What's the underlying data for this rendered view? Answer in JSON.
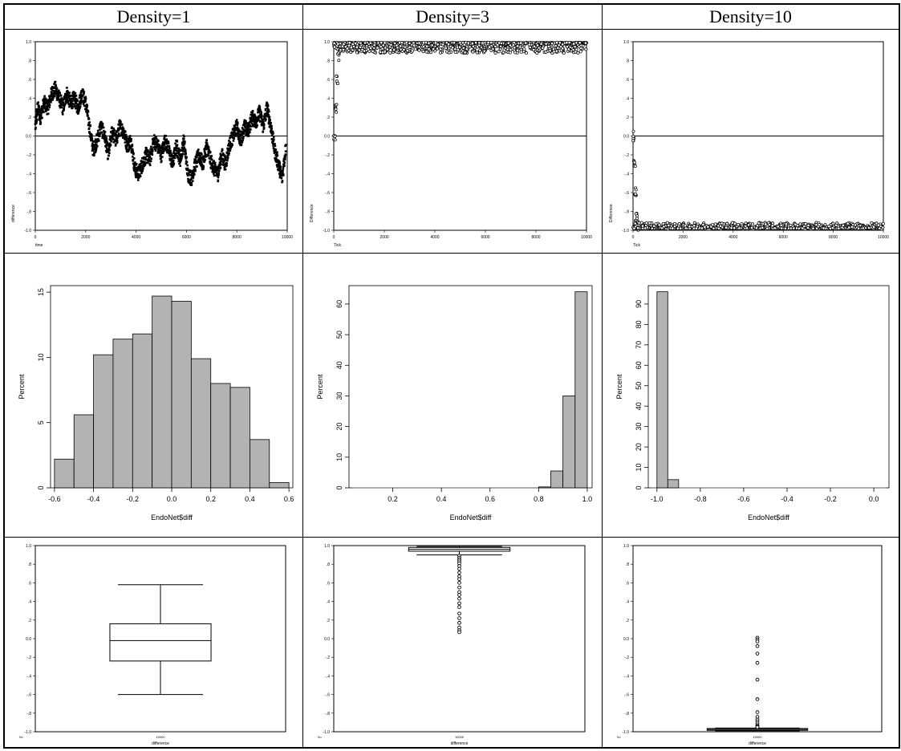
{
  "columns": [
    "Density=1",
    "Density=3",
    "Density=10"
  ],
  "chart_data": [
    {
      "panel": "density1-timeseries",
      "type": "scatter",
      "xlabel": "time",
      "ylabel": "difference",
      "xlim": [
        0,
        10000
      ],
      "ylim": [
        -1.0,
        1.0
      ],
      "xticks": [
        "0",
        "2000",
        "4000",
        "6000",
        "8000",
        "10000"
      ],
      "yticks": [
        "-1.0",
        "-.8",
        "-.6",
        "-.4",
        "-.2",
        "0.0",
        ".2",
        ".4",
        ".6",
        ".8",
        "1.0"
      ],
      "reference_line": 0,
      "trace_x": [
        0,
        100,
        200,
        350,
        500,
        650,
        800,
        950,
        1100,
        1250,
        1400,
        1550,
        1700,
        1850,
        2000,
        2150,
        2300,
        2450,
        2600,
        2750,
        2900,
        3050,
        3200,
        3350,
        3500,
        3650,
        3800,
        3950,
        4100,
        4250,
        4400,
        4550,
        4700,
        4850,
        5000,
        5150,
        5300,
        5450,
        5600,
        5750,
        5900,
        6050,
        6200,
        6350,
        6500,
        6650,
        6800,
        6950,
        7100,
        7250,
        7400,
        7550,
        7700,
        7850,
        8000,
        8150,
        8300,
        8450,
        8600,
        8750,
        8900,
        9050,
        9200,
        9350,
        9500,
        9650,
        9800,
        9950
      ],
      "trace_y": [
        0.1,
        0.3,
        0.2,
        0.35,
        0.3,
        0.45,
        0.5,
        0.4,
        0.3,
        0.45,
        0.35,
        0.4,
        0.3,
        0.45,
        0.35,
        0.1,
        -0.15,
        -0.05,
        0.1,
        0.0,
        -0.2,
        0.05,
        -0.05,
        0.1,
        0.05,
        -0.1,
        -0.05,
        -0.35,
        -0.4,
        -0.3,
        -0.2,
        -0.25,
        -0.05,
        -0.1,
        -0.2,
        -0.05,
        -0.15,
        -0.3,
        -0.1,
        -0.25,
        -0.05,
        -0.4,
        -0.45,
        -0.3,
        -0.2,
        -0.3,
        -0.1,
        -0.25,
        -0.35,
        -0.4,
        -0.2,
        -0.3,
        -0.1,
        0.0,
        0.1,
        -0.05,
        0.1,
        0.05,
        0.2,
        0.15,
        0.25,
        0.1,
        0.3,
        0.1,
        -0.15,
        -0.3,
        -0.45,
        -0.1
      ]
    },
    {
      "panel": "density3-timeseries",
      "type": "scatter",
      "xlabel": "Tick",
      "ylabel": "Difference",
      "xlim": [
        0,
        10000
      ],
      "ylim": [
        -1.0,
        1.0
      ],
      "xticks": [
        "0",
        "2000",
        "4000",
        "6000",
        "8000",
        "10000"
      ],
      "yticks": [
        "-1.0",
        "-.8",
        "-.6",
        "-.4",
        "-.2",
        "0.0",
        ".2",
        ".4",
        ".6",
        ".8",
        "1.0"
      ],
      "reference_line": 0,
      "band": [
        0.88,
        0.99
      ],
      "initial_rise": [
        [
          0,
          0.0
        ],
        [
          50,
          0.3
        ],
        [
          100,
          0.6
        ],
        [
          150,
          0.85
        ],
        [
          200,
          0.93
        ]
      ]
    },
    {
      "panel": "density10-timeseries",
      "type": "scatter",
      "xlabel": "Tick",
      "ylabel": "Difference",
      "xlim": [
        0,
        10000
      ],
      "ylim": [
        -1.0,
        1.0
      ],
      "xticks": [
        "0",
        "2000",
        "4000",
        "6000",
        "8000",
        "10000"
      ],
      "yticks": [
        "-1.0",
        "-.8",
        "-.6",
        "-.4",
        "-.2",
        "0.0",
        ".2",
        ".4",
        ".6",
        ".8",
        "1.0"
      ],
      "reference_line": 0,
      "band": [
        -0.98,
        -0.92
      ],
      "initial_drop": [
        [
          0,
          0.0
        ],
        [
          30,
          -0.3
        ],
        [
          60,
          -0.6
        ],
        [
          100,
          -0.85
        ],
        [
          150,
          -0.95
        ]
      ]
    },
    {
      "panel": "density1-histogram",
      "type": "bar",
      "xlabel": "EndoNet$diff",
      "ylabel": "Percent",
      "xlim": [
        -0.62,
        0.62
      ],
      "ylim": [
        0,
        15.5
      ],
      "xticks": [
        -0.6,
        -0.4,
        -0.2,
        0.0,
        0.2,
        0.4,
        0.6
      ],
      "xtick_labels": [
        "-0.6",
        "-0.4",
        "-0.2",
        "0.0",
        "0.2",
        "0.4",
        "0.6"
      ],
      "yticks": [
        0,
        5,
        10,
        15
      ],
      "ytick_labels": [
        "0",
        "5",
        "10",
        "15"
      ],
      "bin_edges": [
        -0.6,
        -0.5,
        -0.4,
        -0.3,
        -0.2,
        -0.1,
        0.0,
        0.1,
        0.2,
        0.3,
        0.4,
        0.5,
        0.6
      ],
      "values": [
        2.2,
        5.6,
        10.2,
        11.4,
        11.8,
        14.7,
        14.3,
        9.9,
        8.0,
        7.7,
        3.7,
        0.4
      ]
    },
    {
      "panel": "density3-histogram",
      "type": "bar",
      "xlabel": "EndoNet$diff",
      "ylabel": "Percent",
      "xlim": [
        0.02,
        1.02
      ],
      "ylim": [
        0,
        66
      ],
      "xticks": [
        0.2,
        0.4,
        0.6,
        0.8,
        1.0
      ],
      "xtick_labels": [
        "0.2",
        "0.4",
        "0.6",
        "0.8",
        "1.0"
      ],
      "yticks": [
        0,
        10,
        20,
        30,
        40,
        50,
        60
      ],
      "ytick_labels": [
        "0",
        "10",
        "20",
        "30",
        "40",
        "50",
        "60"
      ],
      "bin_edges": [
        0.8,
        0.85,
        0.9,
        0.95,
        1.0
      ],
      "values": [
        0.3,
        5.5,
        30.0,
        64.0
      ]
    },
    {
      "panel": "density10-histogram",
      "type": "bar",
      "xlabel": "EndoNet$diff",
      "ylabel": "Percent",
      "xlim": [
        -1.04,
        0.07
      ],
      "ylim": [
        0,
        99
      ],
      "xticks": [
        -1.0,
        -0.8,
        -0.6,
        -0.4,
        -0.2,
        0.0
      ],
      "xtick_labels": [
        "-1.0",
        "-0.8",
        "-0.6",
        "-0.4",
        "-0.2",
        "0.0"
      ],
      "yticks": [
        0,
        10,
        20,
        30,
        40,
        50,
        60,
        70,
        80,
        90
      ],
      "ytick_labels": [
        "0",
        "10",
        "20",
        "30",
        "40",
        "50",
        "60",
        "70",
        "80",
        "90"
      ],
      "bin_edges": [
        -1.0,
        -0.95,
        -0.9
      ],
      "values": [
        96.0,
        4.0
      ]
    },
    {
      "panel": "density1-boxplot",
      "type": "box",
      "xlabel": "difference",
      "category": "10000",
      "n_label": "N=",
      "ylim": [
        -1.0,
        1.0
      ],
      "yticks": [
        "-1.0",
        "-.8",
        "-.6",
        "-.4",
        "-.2",
        "0.0",
        ".2",
        ".4",
        ".6",
        ".8",
        "1.0"
      ],
      "whisker_low": -0.6,
      "q1": -0.24,
      "median": -0.02,
      "q3": 0.16,
      "whisker_high": 0.58,
      "outliers": []
    },
    {
      "panel": "density3-boxplot",
      "type": "box",
      "xlabel": "difference",
      "category": "10000",
      "n_label": "N=",
      "ylim": [
        -1.0,
        1.0
      ],
      "yticks": [
        "-1.0",
        "-.8",
        "-.6",
        "-.4",
        "-.2",
        "0.0",
        ".2",
        ".4",
        ".6",
        ".8",
        "1.0"
      ],
      "whisker_low": 0.9,
      "q1": 0.94,
      "median": 0.96,
      "q3": 0.98,
      "whisker_high": 0.99,
      "outliers": [
        0.89,
        0.87,
        0.85,
        0.83,
        0.81,
        0.78,
        0.75,
        0.71,
        0.67,
        0.64,
        0.6,
        0.55,
        0.5,
        0.47,
        0.43,
        0.38,
        0.34,
        0.27,
        0.22,
        0.17,
        0.12,
        0.09,
        0.07
      ]
    },
    {
      "panel": "density10-boxplot",
      "type": "box",
      "xlabel": "difference",
      "category": "10000",
      "n_label": "N=",
      "ylim": [
        -1.0,
        1.0
      ],
      "yticks": [
        "-1.0",
        "-.8",
        "-.6",
        "-.4",
        "-.2",
        "0.0",
        ".2",
        ".4",
        ".6",
        ".8",
        "1.0"
      ],
      "whisker_low": -0.99,
      "q1": -0.985,
      "median": -0.975,
      "q3": -0.965,
      "whisker_high": -0.96,
      "outliers": [
        0.01,
        -0.01,
        -0.03,
        -0.08,
        -0.16,
        -0.26,
        -0.44,
        -0.65,
        -0.79,
        -0.84,
        -0.87,
        -0.89,
        -0.91,
        -0.93,
        -0.94,
        -0.95
      ]
    }
  ]
}
